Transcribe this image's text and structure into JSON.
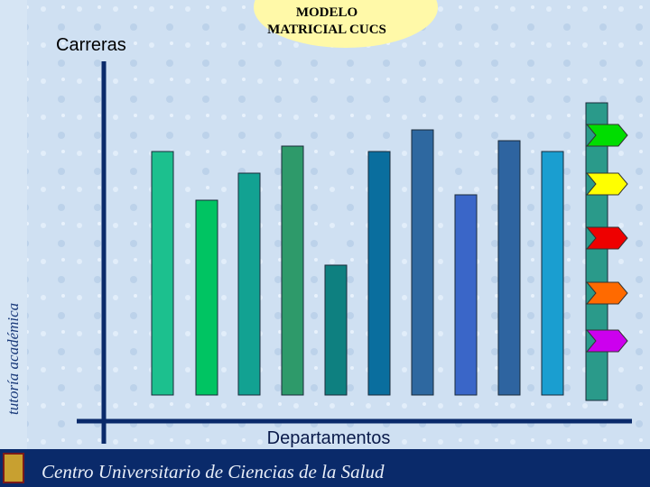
{
  "side_label": "tutoría académica",
  "rows_label": "Carreras",
  "title": {
    "line1": "MODELO",
    "line2": "MATRICIAL CUCS"
  },
  "columns_label": "Departamentos",
  "footer": "Centro Universitario de Ciencias de la Salud"
}
